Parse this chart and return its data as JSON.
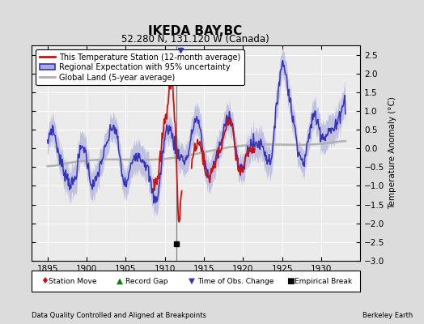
{
  "title": "IKEDA BAY,BC",
  "subtitle": "52.280 N, 131.120 W (Canada)",
  "ylabel": "Temperature Anomaly (°C)",
  "xlabel_footer": "Data Quality Controlled and Aligned at Breakpoints",
  "footer_right": "Berkeley Earth",
  "xlim": [
    1893,
    1935
  ],
  "ylim": [
    -3.0,
    2.75
  ],
  "yticks": [
    -3,
    -2.5,
    -2,
    -1.5,
    -1,
    -0.5,
    0,
    0.5,
    1,
    1.5,
    2,
    2.5
  ],
  "xticks": [
    1895,
    1900,
    1905,
    1910,
    1915,
    1920,
    1925,
    1930
  ],
  "empirical_break_x": 1911.5,
  "bg_color": "#dcdcdc",
  "plot_bg_color": "#ebebeb",
  "regional_color": "#3333bb",
  "regional_fill_color": "#aaaadd",
  "station_color": "#cc1111",
  "global_color": "#b0b0b0",
  "legend_items": [
    "This Temperature Station (12-month average)",
    "Regional Expectation with 95% uncertainty",
    "Global Land (5-year average)"
  ],
  "station_seg1_start": 1908.5,
  "station_seg1_end": 1912.2,
  "station_seg2_start": 1913.4,
  "station_seg2_end": 1921.5
}
